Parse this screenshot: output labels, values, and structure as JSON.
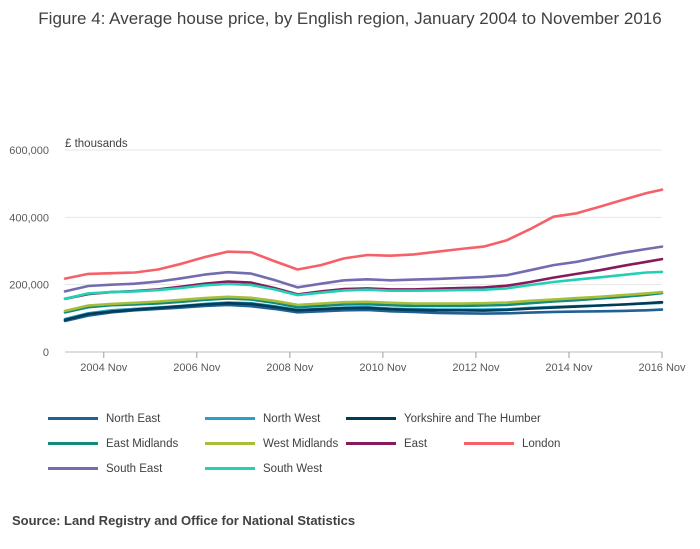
{
  "title": "Figure 4: Average house price, by English region, January 2004 to November 2016",
  "source": "Source: Land Registry and Office for National Statistics",
  "chart_data": {
    "type": "line",
    "title": "Figure 4: Average house price, by English region, January 2004 to November 2016",
    "ylabel": "£ thousands",
    "xlabel": "",
    "xlim": [
      "2004-01",
      "2016-11"
    ],
    "ylim": [
      0,
      600000
    ],
    "yticks": [
      0,
      200000,
      400000,
      600000
    ],
    "ytick_labels": [
      "0",
      "200,000",
      "400,000",
      "600,000"
    ],
    "xticks": [
      "2004-11",
      "2006-11",
      "2008-11",
      "2010-11",
      "2012-11",
      "2014-11",
      "2016-11"
    ],
    "xtick_labels": [
      "2004 Nov",
      "2006 Nov",
      "2008 Nov",
      "2010 Nov",
      "2012 Nov",
      "2014 Nov",
      "2016 Nov"
    ],
    "grid": "horizontal",
    "legend_position": "bottom",
    "x": [
      "2004-01",
      "2004-07",
      "2005-01",
      "2005-07",
      "2006-01",
      "2006-07",
      "2007-01",
      "2007-07",
      "2008-01",
      "2008-07",
      "2009-01",
      "2009-07",
      "2010-01",
      "2010-07",
      "2011-01",
      "2011-07",
      "2012-01",
      "2012-07",
      "2013-01",
      "2013-07",
      "2014-01",
      "2014-07",
      "2015-01",
      "2015-07",
      "2016-01",
      "2016-07",
      "2016-11"
    ],
    "series": [
      {
        "name": "North East",
        "color": "#206095",
        "values": [
          92000,
          108000,
          118000,
          124000,
          128000,
          132000,
          137000,
          140000,
          136000,
          128000,
          118000,
          121000,
          124000,
          125000,
          121000,
          119000,
          116000,
          115000,
          114000,
          115000,
          117000,
          119000,
          120000,
          121000,
          122000,
          124000,
          126000
        ]
      },
      {
        "name": "North West",
        "color": "#27a0cc",
        "values": [
          98000,
          115000,
          124000,
          128000,
          132000,
          137000,
          143000,
          147000,
          145000,
          136000,
          125000,
          128000,
          132000,
          133000,
          129000,
          127000,
          126000,
          126000,
          126000,
          127000,
          131000,
          134000,
          136000,
          138000,
          141000,
          144000,
          146000
        ]
      },
      {
        "name": "Yorkshire and The Humber",
        "color": "#003c57",
        "values": [
          95000,
          113000,
          120000,
          126000,
          131000,
          136000,
          141000,
          145000,
          143000,
          134000,
          124000,
          127000,
          130000,
          131000,
          127000,
          125000,
          124000,
          124000,
          123000,
          125000,
          129000,
          132000,
          135000,
          138000,
          141000,
          145000,
          148000
        ]
      },
      {
        "name": "East Midlands",
        "color": "#118c7b",
        "values": [
          118000,
          133000,
          139000,
          141000,
          144000,
          149000,
          155000,
          159000,
          156000,
          146000,
          133000,
          137000,
          141000,
          142000,
          139000,
          137000,
          137000,
          137000,
          138000,
          140000,
          145000,
          150000,
          154000,
          159000,
          164000,
          170000,
          175000
        ]
      },
      {
        "name": "West Midlands",
        "color": "#a8bd3a",
        "values": [
          122000,
          138000,
          143000,
          146000,
          150000,
          155000,
          160000,
          164000,
          161000,
          152000,
          140000,
          144000,
          148000,
          149000,
          146000,
          144000,
          144000,
          144000,
          145000,
          147000,
          152000,
          156000,
          160000,
          164000,
          169000,
          174000,
          178000
        ]
      },
      {
        "name": "East",
        "color": "#871a5b",
        "values": [
          158000,
          172000,
          178000,
          181000,
          186000,
          194000,
          203000,
          209000,
          206000,
          190000,
          171000,
          180000,
          187000,
          189000,
          186000,
          186000,
          188000,
          190000,
          192000,
          197000,
          208000,
          221000,
          232000,
          243000,
          256000,
          268000,
          276000
        ]
      },
      {
        "name": "London",
        "color": "#f66068",
        "values": [
          218000,
          232000,
          234000,
          236000,
          245000,
          262000,
          282000,
          298000,
          296000,
          270000,
          245000,
          258000,
          278000,
          288000,
          286000,
          290000,
          298000,
          306000,
          313000,
          332000,
          365000,
          402000,
          412000,
          432000,
          452000,
          472000,
          482000
        ]
      },
      {
        "name": "South East",
        "color": "#746cb1",
        "values": [
          180000,
          196000,
          200000,
          203000,
          209000,
          219000,
          230000,
          237000,
          233000,
          214000,
          192000,
          203000,
          213000,
          216000,
          213000,
          215000,
          217000,
          220000,
          223000,
          228000,
          243000,
          258000,
          268000,
          282000,
          295000,
          306000,
          313000
        ]
      },
      {
        "name": "South West",
        "color": "#22d0b6",
        "values": [
          158000,
          174000,
          178000,
          180000,
          184000,
          190000,
          198000,
          202000,
          199000,
          186000,
          169000,
          176000,
          183000,
          185000,
          182000,
          182000,
          183000,
          184000,
          185000,
          189000,
          199000,
          208000,
          215000,
          222000,
          229000,
          236000,
          238000
        ]
      }
    ]
  }
}
